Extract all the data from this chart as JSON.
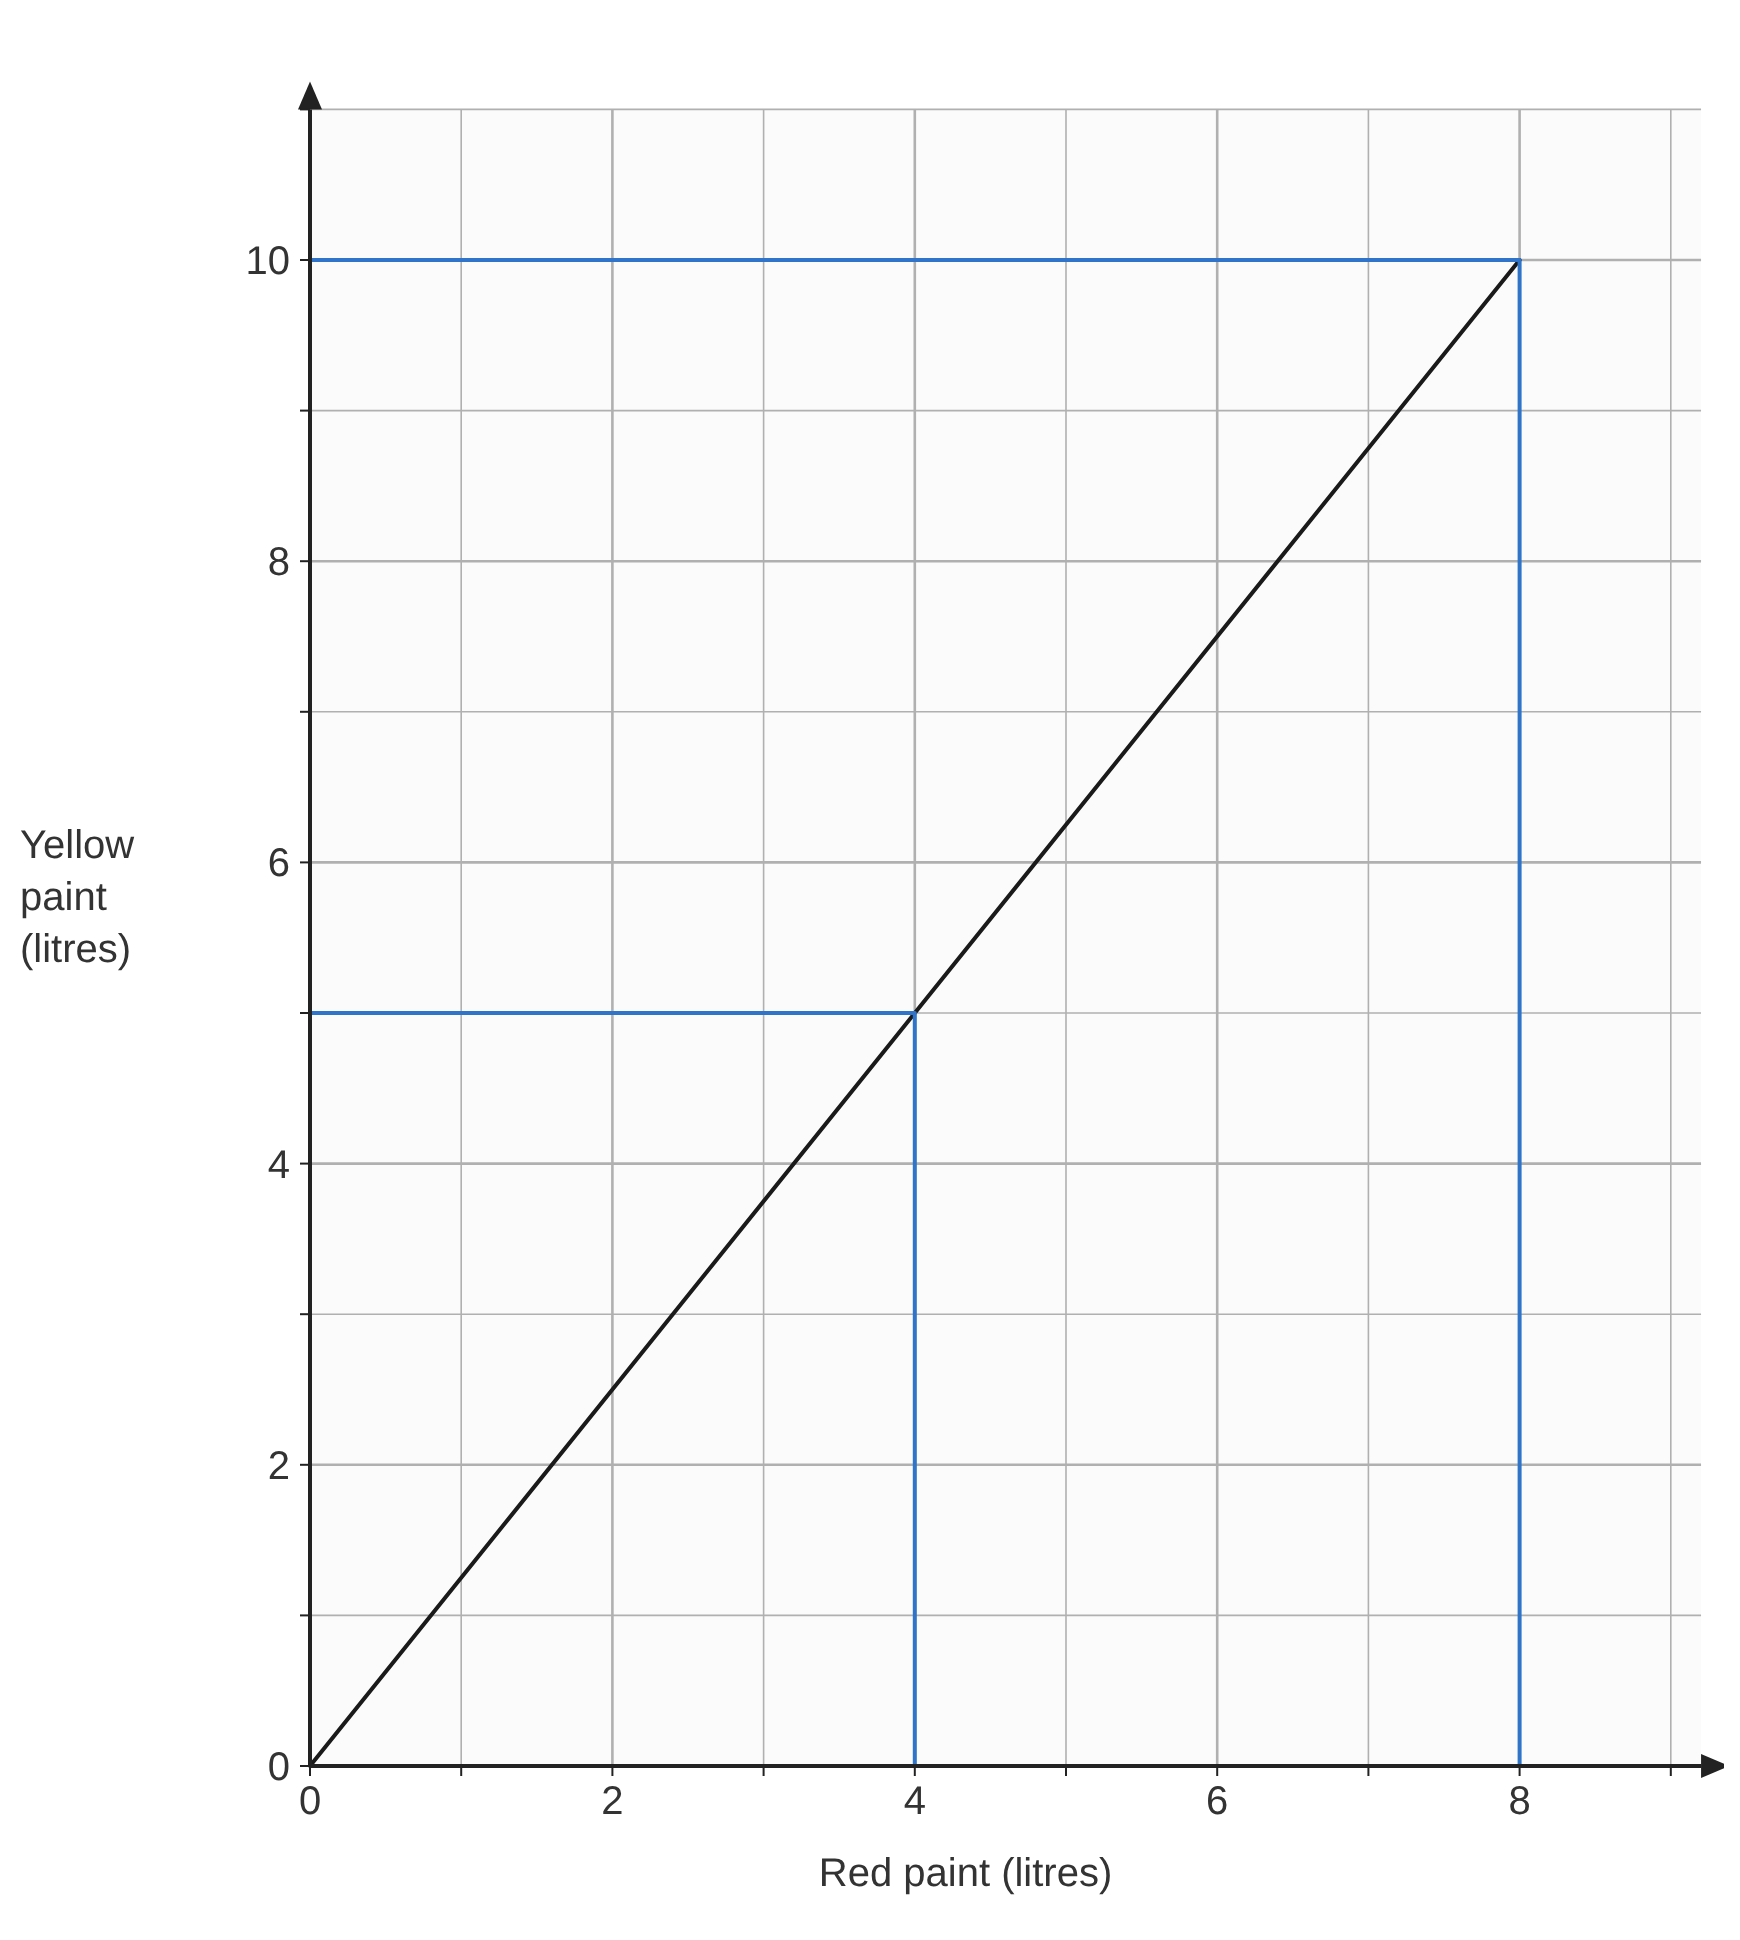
{
  "chart_data": {
    "type": "line",
    "xlabel": "Red paint (litres)",
    "ylabel": "Yellow paint (litres)",
    "xlim": [
      0,
      9.2
    ],
    "ylim": [
      0,
      11
    ],
    "xticks": [
      0,
      {
        "value": 1,
        "label": null
      },
      2,
      {
        "value": 3,
        "label": null
      },
      4,
      {
        "value": 5,
        "label": null
      },
      6,
      {
        "value": 7,
        "label": null
      },
      8,
      {
        "value": 9,
        "label": null
      }
    ],
    "yticks": [
      0,
      {
        "value": 1,
        "label": null
      },
      2,
      {
        "value": 3,
        "label": null
      },
      4,
      {
        "value": 5,
        "label": null
      },
      6,
      {
        "value": 7,
        "label": null
      },
      8,
      {
        "value": 9,
        "label": null
      },
      10,
      {
        "value": 11,
        "label": null
      }
    ],
    "grid": true,
    "marker": "none",
    "line_style": "solid",
    "series": [
      {
        "color": "#1a1a1a",
        "x": [
          0,
          8
        ],
        "values": [
          0,
          10
        ]
      },
      {
        "color": "#2f74c8",
        "x": [
          0,
          8,
          8
        ],
        "values": [
          10,
          10,
          0
        ]
      },
      {
        "color": "#2f74c8",
        "x": [
          0,
          4,
          4
        ],
        "values": [
          5,
          5,
          0
        ]
      }
    ]
  }
}
